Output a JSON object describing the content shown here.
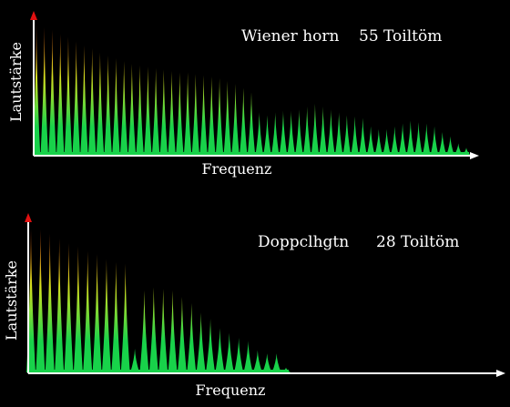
{
  "colors": {
    "background": "#000000",
    "axis": "#ffffff",
    "axis_arrow_y": "#e01010",
    "gradient_top": "#e02810",
    "gradient_mid": "#d6e020",
    "gradient_bottom": "#18d24a",
    "text": "#ffffff"
  },
  "chart_data": [
    {
      "type": "area",
      "title": "Wiener horn",
      "subtitle": "55 Toiltöm",
      "xlabel": "Frequenz",
      "ylabel": "Lautstärke",
      "grid": false,
      "legend": "none",
      "ylim": [
        0,
        100
      ],
      "x": [
        1,
        2,
        3,
        4,
        5,
        6,
        7,
        8,
        9,
        10,
        11,
        12,
        13,
        14,
        15,
        16,
        17,
        18,
        19,
        20,
        21,
        22,
        23,
        24,
        25,
        26,
        27,
        28,
        29,
        30,
        31,
        32,
        33,
        34,
        35,
        36,
        37,
        38,
        39,
        40,
        41,
        42,
        43,
        44,
        45,
        46,
        47,
        48,
        49,
        50,
        51,
        52,
        53,
        54,
        55
      ],
      "values": [
        92,
        90,
        88,
        85,
        83,
        80,
        77,
        75,
        72,
        70,
        68,
        66,
        64,
        63,
        62,
        61,
        60,
        59,
        58,
        58,
        57,
        56,
        55,
        54,
        52,
        50,
        47,
        44,
        30,
        28,
        30,
        31,
        31,
        32,
        34,
        36,
        34,
        32,
        30,
        28,
        27,
        26,
        20,
        18,
        18,
        20,
        22,
        24,
        23,
        22,
        20,
        16,
        13,
        8,
        5
      ]
    },
    {
      "type": "area",
      "title": "Doppclhgtn",
      "subtitle": "28 Toiltöm",
      "xlabel": "Frequenz",
      "ylabel": "Lautstärke",
      "grid": false,
      "legend": "none",
      "ylim": [
        0,
        100
      ],
      "x": [
        1,
        2,
        3,
        4,
        5,
        6,
        7,
        8,
        9,
        10,
        11,
        12,
        13,
        14,
        15,
        16,
        17,
        18,
        19,
        20,
        21,
        22,
        23,
        24,
        25,
        26,
        27,
        28
      ],
      "values": [
        92,
        91,
        88,
        85,
        82,
        80,
        77,
        75,
        72,
        70,
        69,
        15,
        52,
        54,
        53,
        52,
        48,
        44,
        38,
        34,
        28,
        25,
        22,
        20,
        14,
        12,
        12,
        3
      ]
    }
  ]
}
